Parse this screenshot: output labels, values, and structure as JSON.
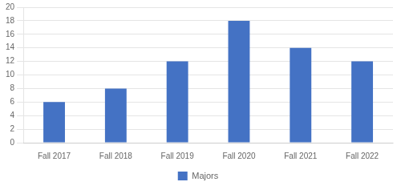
{
  "chart_data": {
    "type": "bar",
    "categories": [
      "Fall 2017",
      "Fall 2018",
      "Fall 2019",
      "Fall 2020",
      "Fall 2021",
      "Fall 2022"
    ],
    "series": [
      {
        "name": "Majors",
        "color": "#4472C4",
        "values": [
          6,
          8,
          12,
          18,
          14,
          12
        ]
      }
    ],
    "ylim": [
      0,
      20
    ],
    "yticks": [
      0,
      2,
      4,
      6,
      8,
      10,
      12,
      14,
      16,
      18,
      20
    ],
    "grid": true,
    "legend": "bottom"
  }
}
